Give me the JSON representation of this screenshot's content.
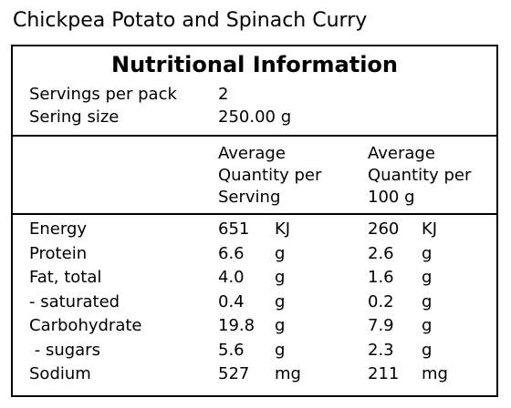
{
  "title": "Chickpea Potato and Spinach Curry",
  "panel": {
    "heading": "Nutritional Information",
    "servings": {
      "label": "Servings per pack",
      "value": "2"
    },
    "serving_size": {
      "label": "Sering size",
      "value": "250.00 g"
    },
    "columns": {
      "per_serving": [
        "Average",
        "Quantity per",
        "Serving"
      ],
      "per_100g": [
        "Average",
        "Quantity per",
        "100 g"
      ]
    },
    "rows": [
      {
        "name": "Energy",
        "serving_value": "651",
        "serving_unit": "KJ",
        "per100_value": "260",
        "per100_unit": "KJ"
      },
      {
        "name": "Protein",
        "serving_value": "6.6",
        "serving_unit": "g",
        "per100_value": "2.6",
        "per100_unit": "g"
      },
      {
        "name": "Fat, total",
        "serving_value": "4.0",
        "serving_unit": "g",
        "per100_value": "1.6",
        "per100_unit": "g"
      },
      {
        "name": "- saturated",
        "serving_value": "0.4",
        "serving_unit": "g",
        "per100_value": "0.2",
        "per100_unit": "g"
      },
      {
        "name": "Carbohydrate",
        "serving_value": "19.8",
        "serving_unit": "g",
        "per100_value": "7.9",
        "per100_unit": "g"
      },
      {
        "name": " - sugars",
        "serving_value": "5.6",
        "serving_unit": "g",
        "per100_value": "2.3",
        "per100_unit": "g"
      },
      {
        "name": "Sodium",
        "serving_value": "527",
        "serving_unit": "mg",
        "per100_value": "211",
        "per100_unit": "mg"
      }
    ]
  }
}
